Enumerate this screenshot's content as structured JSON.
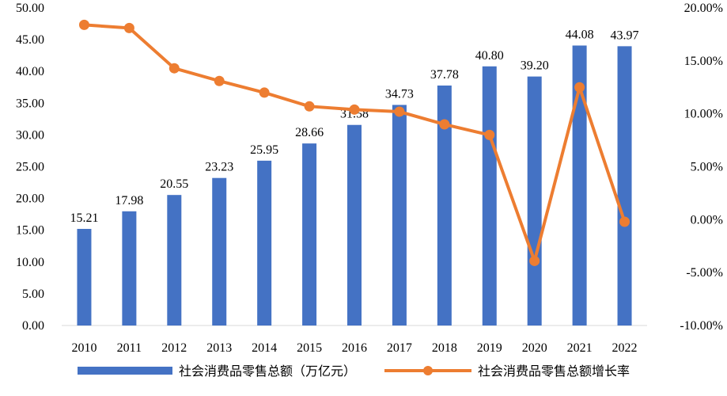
{
  "chart_data": {
    "type": "bar",
    "categories": [
      "2010",
      "2011",
      "2012",
      "2013",
      "2014",
      "2015",
      "2016",
      "2017",
      "2018",
      "2019",
      "2020",
      "2021",
      "2022"
    ],
    "series": [
      {
        "name": "社会消费品零售总额（万亿元）",
        "type": "bar",
        "axis": "left",
        "color": "#4472C4",
        "values": [
          15.21,
          17.98,
          20.55,
          23.23,
          25.95,
          28.66,
          31.58,
          34.73,
          37.78,
          40.8,
          39.2,
          44.08,
          43.97
        ],
        "labels": [
          "15.21",
          "17.98",
          "20.55",
          "23.23",
          "25.95",
          "28.66",
          "31.58",
          "34.73",
          "37.78",
          "40.80",
          "39.20",
          "44.08",
          "43.97"
        ]
      },
      {
        "name": "社会消费品零售总额增长率",
        "type": "line",
        "axis": "right",
        "color": "#ED7D31",
        "values": [
          18.4,
          18.1,
          14.3,
          13.1,
          12.0,
          10.7,
          10.4,
          10.2,
          9.0,
          8.0,
          -3.9,
          12.5,
          -0.2
        ]
      }
    ],
    "y_left": {
      "ylim": [
        0,
        50
      ],
      "ticks": [
        "0.00",
        "5.00",
        "10.00",
        "15.00",
        "20.00",
        "25.00",
        "30.00",
        "35.00",
        "40.00",
        "45.00",
        "50.00"
      ]
    },
    "y_right": {
      "ylim": [
        -10,
        20
      ],
      "ticks": [
        "-10.00%",
        "-5.00%",
        "0.00%",
        "5.00%",
        "10.00%",
        "15.00%",
        "20.00%"
      ]
    },
    "grid": false,
    "legend_position": "bottom"
  },
  "legend": {
    "bar_label": "社会消费品零售总额（万亿元）",
    "line_label": "社会消费品零售总额增长率"
  }
}
